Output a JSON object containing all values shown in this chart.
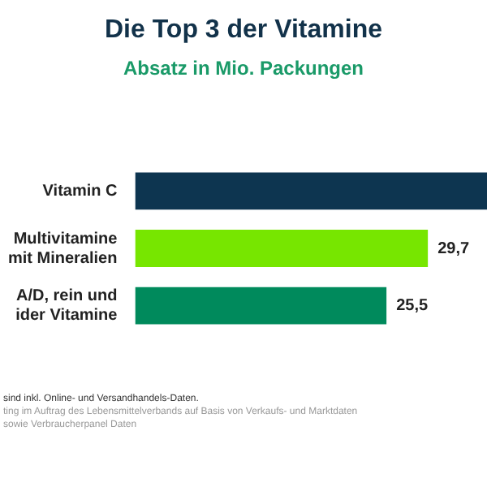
{
  "chart_data": {
    "type": "bar",
    "orientation": "horizontal",
    "title": "Die Top 3 der Vitamine",
    "subtitle": "Absatz in Mio. Packungen",
    "categories": [
      "Vitamin C",
      "Multivitamine\nmit Mineralien",
      "A/D, rein und\nider Vitamine"
    ],
    "values": [
      35.7,
      29.7,
      25.5
    ],
    "colors": [
      "#0d3550",
      "#77e600",
      "#008a5c"
    ],
    "value_labels": [
      null,
      "29,7",
      "25,5"
    ],
    "legend": false,
    "tick_labels": "y",
    "annotations": [
      "sind inkl. Online- und Versandhandels-Daten.",
      "ting im Auftrag des Lebensmittelverbands auf Basis von Verkaufs- und Marktdaten",
      "sowie Verbraucherpanel Daten"
    ]
  }
}
